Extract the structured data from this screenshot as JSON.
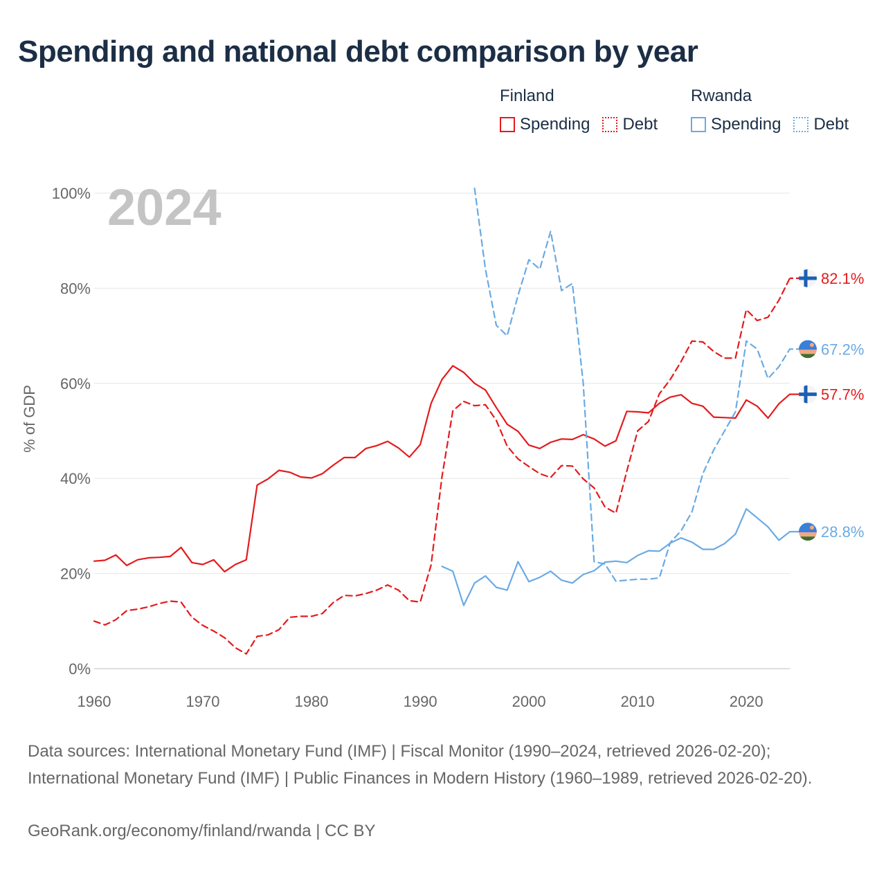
{
  "title": "Spending and national debt comparison by year",
  "legend": {
    "groups": [
      {
        "country": "Finland",
        "color": "#e41a1c",
        "items": [
          "Spending",
          "Debt"
        ]
      },
      {
        "country": "Rwanda",
        "color": "#6aaae4",
        "items": [
          "Spending",
          "Debt"
        ]
      }
    ]
  },
  "year_watermark": "2024",
  "footer": {
    "sources": "Data sources: International Monetary Fund (IMF) | Fiscal Monitor (1990–2024, retrieved 2026-02-20); International Monetary Fund (IMF) | Public Finances in Modern History (1960–1989, retrieved 2026-02-20).",
    "attribution": "GeoRank.org/economy/finland/rwanda | CC BY"
  },
  "chart_data": {
    "type": "line",
    "ylabel": "% of GDP",
    "xlabel": "",
    "xlim": [
      1960,
      2024
    ],
    "ylim": [
      0,
      100
    ],
    "x_ticks": [
      1960,
      1970,
      1980,
      1990,
      2000,
      2010,
      2020
    ],
    "y_ticks": [
      0,
      20,
      40,
      60,
      80,
      100
    ],
    "y_tick_labels": [
      "0%",
      "20%",
      "40%",
      "60%",
      "80%",
      "100%"
    ],
    "grid": true,
    "series": [
      {
        "name": "Finland Spending",
        "country": "Finland",
        "metric": "Spending",
        "color": "#e41a1c",
        "dash": "solid",
        "end_label": "57.7%",
        "flag": "finland",
        "start_year": 1960,
        "values": [
          22.6,
          22.8,
          23.9,
          21.7,
          22.9,
          23.3,
          23.4,
          23.6,
          25.5,
          22.3,
          21.9,
          22.9,
          20.4,
          21.9,
          22.9,
          38.6,
          39.9,
          41.7,
          41.3,
          40.3,
          40.1,
          41.0,
          42.8,
          44.4,
          44.4,
          46.3,
          46.9,
          47.8,
          46.4,
          44.5,
          47.1,
          55.8,
          60.8,
          63.7,
          62.3,
          60.0,
          58.6,
          54.9,
          51.4,
          49.9,
          47.0,
          46.3,
          47.6,
          48.3,
          48.2,
          49.2,
          48.3,
          46.8,
          47.9,
          54.1,
          54.0,
          53.8,
          55.8,
          57.1,
          57.6,
          55.8,
          55.2,
          52.9,
          52.8,
          52.7,
          56.5,
          55.2,
          52.7,
          55.7,
          57.7
        ]
      },
      {
        "name": "Finland Debt",
        "country": "Finland",
        "metric": "Debt",
        "color": "#e41a1c",
        "dash": "dashed",
        "end_label": "82.1%",
        "flag": "finland",
        "start_year": 1960,
        "values": [
          10.0,
          9.2,
          10.3,
          12.2,
          12.5,
          13.0,
          13.7,
          14.2,
          14.0,
          10.8,
          9.1,
          7.9,
          6.5,
          4.4,
          3.1,
          6.8,
          7.1,
          8.2,
          10.8,
          11.0,
          11.0,
          11.6,
          13.9,
          15.4,
          15.3,
          15.8,
          16.5,
          17.6,
          16.5,
          14.3,
          14.0,
          21.8,
          40.3,
          54.2,
          56.2,
          55.3,
          55.5,
          52.2,
          46.8,
          44.1,
          42.5,
          41.0,
          40.2,
          42.7,
          42.6,
          39.9,
          38.0,
          34.0,
          32.7,
          41.5,
          50.0,
          52.0,
          57.8,
          60.8,
          64.6,
          68.9,
          68.7,
          66.7,
          65.3,
          65.3,
          75.5,
          73.2,
          73.9,
          77.5,
          82.1
        ]
      },
      {
        "name": "Rwanda Spending",
        "country": "Rwanda",
        "metric": "Spending",
        "color": "#6aaae4",
        "dash": "solid",
        "end_label": "28.8%",
        "flag": "rwanda",
        "start_year": 1992,
        "values": [
          21.5,
          20.5,
          13.3,
          18.0,
          19.5,
          17.1,
          16.5,
          22.5,
          18.3,
          19.2,
          20.5,
          18.6,
          18.0,
          19.8,
          20.6,
          22.4,
          22.6,
          22.3,
          23.8,
          24.8,
          24.7,
          26.4,
          27.5,
          26.6,
          25.1,
          25.1,
          26.3,
          28.3,
          33.6,
          31.7,
          29.8,
          27.0,
          28.8
        ]
      },
      {
        "name": "Rwanda Debt",
        "country": "Rwanda",
        "metric": "Debt",
        "color": "#6aaae4",
        "dash": "dashed",
        "end_label": "67.2%",
        "flag": "rwanda",
        "start_year": 1995,
        "values": [
          101.0,
          84.0,
          72.2,
          70.0,
          78.5,
          86.0,
          84.0,
          92.0,
          79.5,
          81.0,
          60.0,
          22.5,
          22.0,
          18.4,
          18.6,
          18.8,
          18.8,
          19.1,
          26.5,
          29.0,
          33.0,
          41.0,
          46.0,
          50.0,
          54.0,
          68.9,
          67.2,
          61.0,
          63.5,
          67.2
        ]
      }
    ]
  }
}
